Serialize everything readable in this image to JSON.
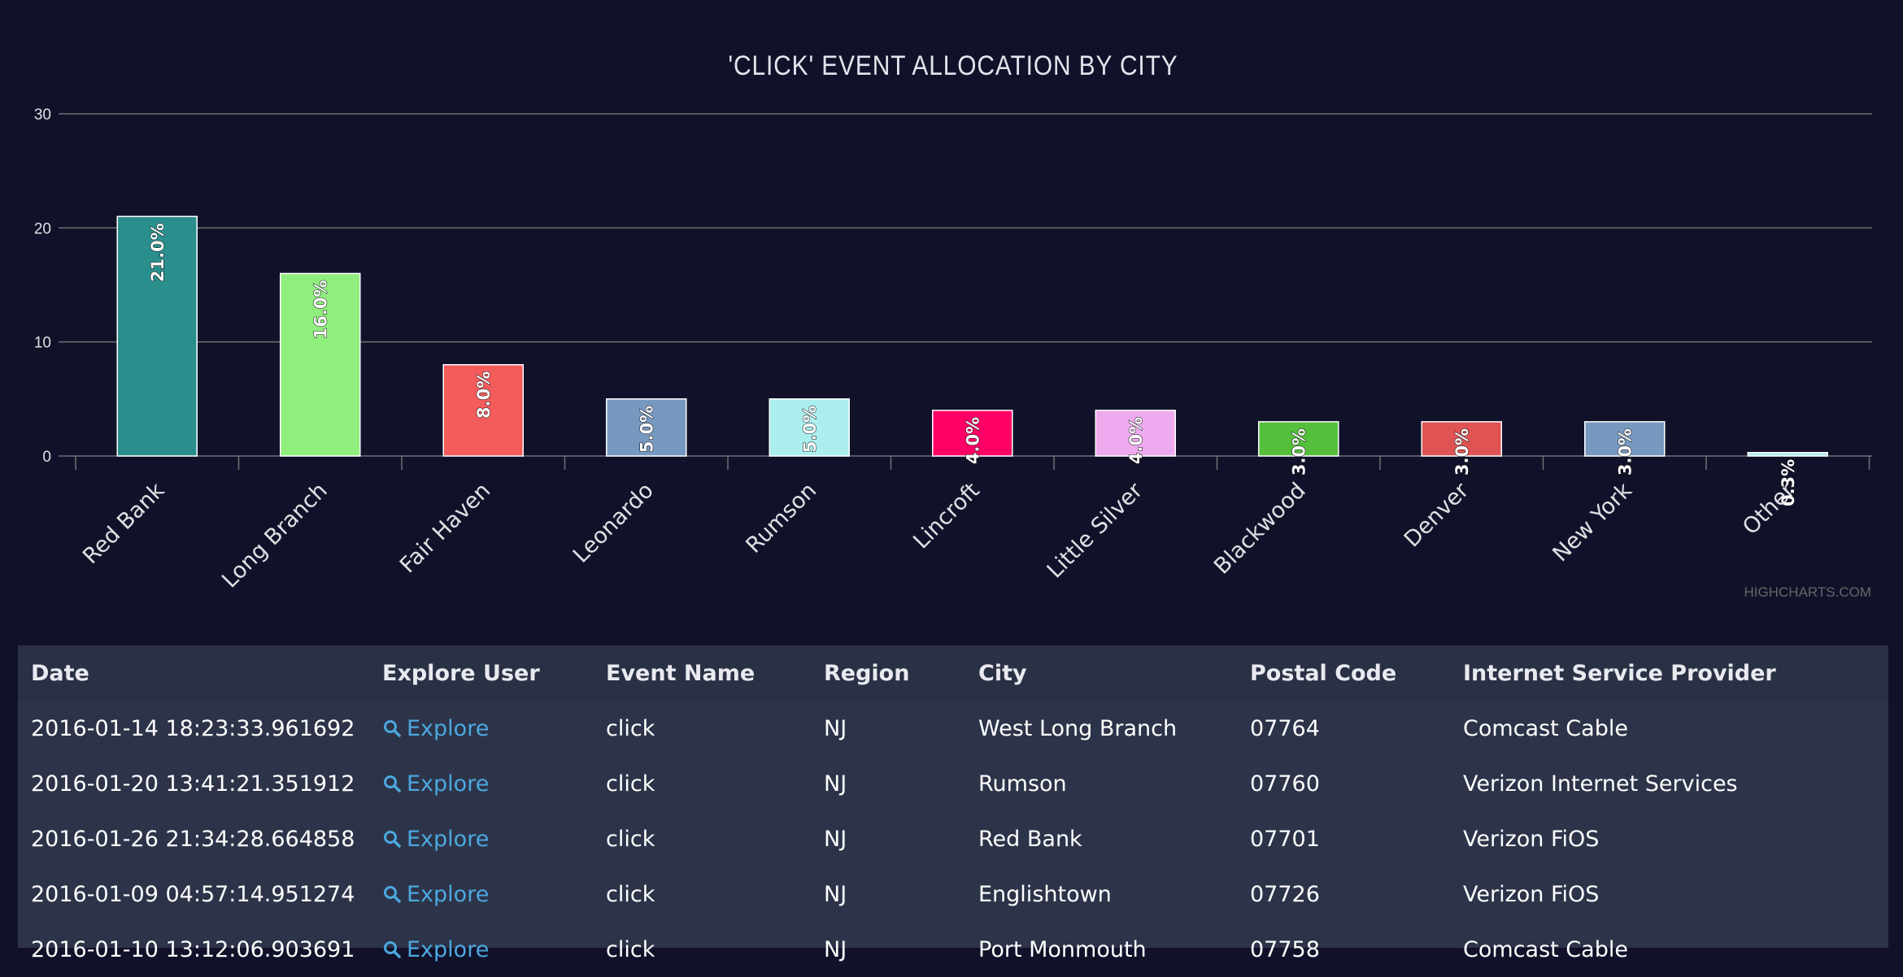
{
  "chart_data": {
    "type": "bar",
    "title": "'CLICK' EVENT ALLOCATION BY CITY",
    "categories": [
      "Red Bank",
      "Long Branch",
      "Fair Haven",
      "Leonardo",
      "Rumson",
      "Lincroft",
      "Little Silver",
      "Blackwood",
      "Denver",
      "New York",
      "Other"
    ],
    "values": [
      21,
      16,
      8,
      5,
      5,
      4,
      4,
      3,
      3,
      3,
      0.3
    ],
    "data_labels": [
      "21.0%",
      "16.0%",
      "8.0%",
      "5.0%",
      "5.0%",
      "4.0%",
      "4.0%",
      "3.0%",
      "3.0%",
      "3.0%",
      "0.3%"
    ],
    "colors": [
      "#2a8f8c",
      "#90ee7e",
      "#f45b5b",
      "#7798bf",
      "#aaeeee",
      "#ff0066",
      "#eeaaee",
      "#55bf3b",
      "#df5353",
      "#7798bf",
      "#aaeeee"
    ],
    "y_ticks": [
      0,
      10,
      20,
      30
    ],
    "ylim": [
      0,
      30
    ],
    "xlabel": "",
    "ylabel": "",
    "grid": true,
    "legend": "none",
    "credits": "HIGHCHARTS.COM"
  },
  "table": {
    "columns": [
      "Date",
      "Explore User",
      "Event Name",
      "Region",
      "City",
      "Postal Code",
      "Internet Service Provider"
    ],
    "rows": [
      {
        "date": "2016-01-14 18:23:33.961692",
        "explore": "Explore",
        "event": "click",
        "region": "NJ",
        "city": "West Long Branch",
        "postal": "07764",
        "isp": "Comcast Cable"
      },
      {
        "date": "2016-01-20 13:41:21.351912",
        "explore": "Explore",
        "event": "click",
        "region": "NJ",
        "city": "Rumson",
        "postal": "07760",
        "isp": "Verizon Internet Services"
      },
      {
        "date": "2016-01-26 21:34:28.664858",
        "explore": "Explore",
        "event": "click",
        "region": "NJ",
        "city": "Red Bank",
        "postal": "07701",
        "isp": "Verizon FiOS"
      },
      {
        "date": "2016-01-09 04:57:14.951274",
        "explore": "Explore",
        "event": "click",
        "region": "NJ",
        "city": "Englishtown",
        "postal": "07726",
        "isp": "Verizon FiOS"
      },
      {
        "date": "2016-01-10 13:12:06.903691",
        "explore": "Explore",
        "event": "click",
        "region": "NJ",
        "city": "Port Monmouth",
        "postal": "07758",
        "isp": "Comcast Cable"
      }
    ]
  }
}
